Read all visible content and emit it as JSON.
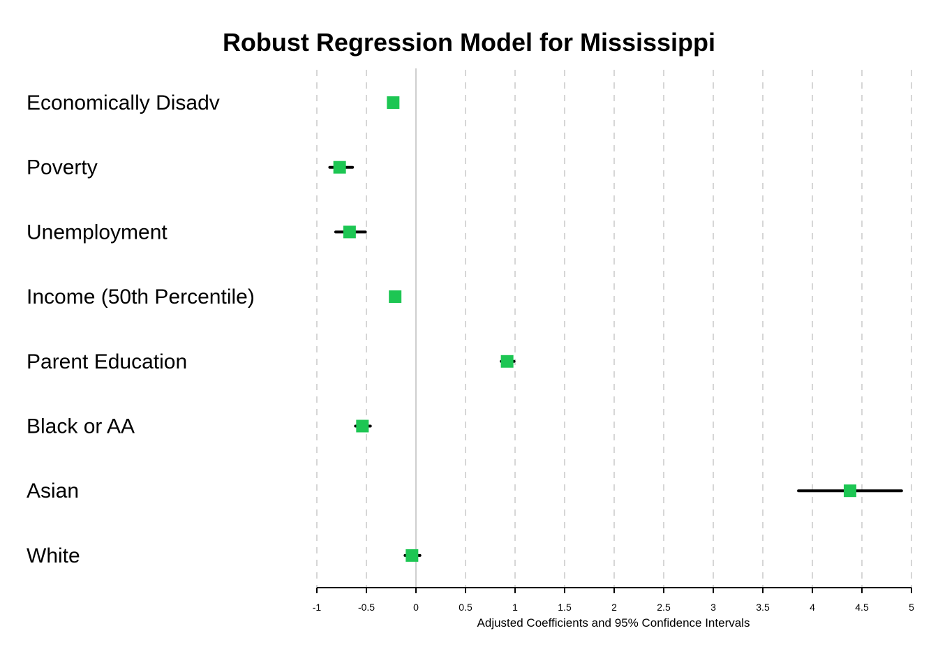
{
  "chart_data": {
    "type": "scatter",
    "title": "Robust Regression Model for Mississippi",
    "xlabel": "Adjusted Coefficients and 95% Confidence Intervals",
    "xlim": [
      -1,
      5
    ],
    "xticks": [
      -1,
      -0.5,
      0,
      0.5,
      1,
      1.5,
      2,
      2.5,
      3,
      3.5,
      4,
      4.5,
      5
    ],
    "xtick_labels": [
      "-1",
      "-0.5",
      "0",
      "0.5",
      "1",
      "1.5",
      "2",
      "2.5",
      "3",
      "3.5",
      "4",
      "4.5",
      "5"
    ],
    "grid": "vertical dashed",
    "reference_line": 0,
    "marker_color": "#1dc653",
    "ci_color": "#000000",
    "categories": [
      "Economically Disadv",
      "Poverty",
      "Unemployment",
      "Income (50th Percentile)",
      "Parent Education",
      "Black or AA",
      "Asian",
      "White"
    ],
    "estimates": [
      -0.23,
      -0.77,
      -0.67,
      -0.21,
      0.92,
      -0.54,
      4.38,
      -0.04
    ],
    "ci_low": [
      -0.26,
      -0.87,
      -0.81,
      -0.24,
      0.86,
      -0.61,
      3.86,
      -0.11
    ],
    "ci_high": [
      -0.2,
      -0.64,
      -0.51,
      -0.18,
      0.99,
      -0.46,
      4.9,
      0.04
    ]
  }
}
